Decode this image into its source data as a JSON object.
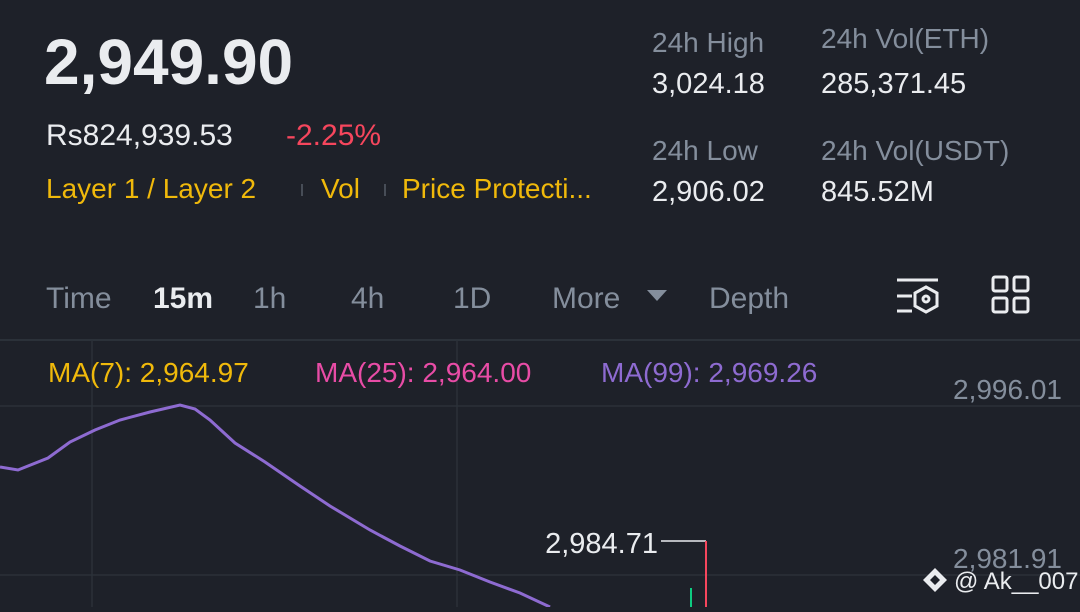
{
  "header": {
    "price": "2,949.90",
    "fiat_price": "Rs824,939.53",
    "change": "-2.25%",
    "tags": [
      "Layer 1 / Layer 2",
      "Vol",
      "Price Protecti..."
    ]
  },
  "stats": [
    {
      "label": "24h High",
      "value": "3,024.18"
    },
    {
      "label": "24h Vol(ETH)",
      "value": "285,371.45"
    },
    {
      "label": "24h Low",
      "value": "2,906.02"
    },
    {
      "label": "24h Vol(USDT)",
      "value": "845.52M"
    }
  ],
  "tabs": [
    "Time",
    "15m",
    "1h",
    "4h",
    "1D",
    "More",
    "Depth"
  ],
  "indicators": [
    "MA(7): 2,964.97",
    "MA(25): 2,964.00",
    "MA(99): 2,969.26"
  ],
  "price_axis": [
    "2,996.01",
    "2,981.91"
  ],
  "annotation": "2,984.71",
  "watermark": "@ Ak__007"
}
